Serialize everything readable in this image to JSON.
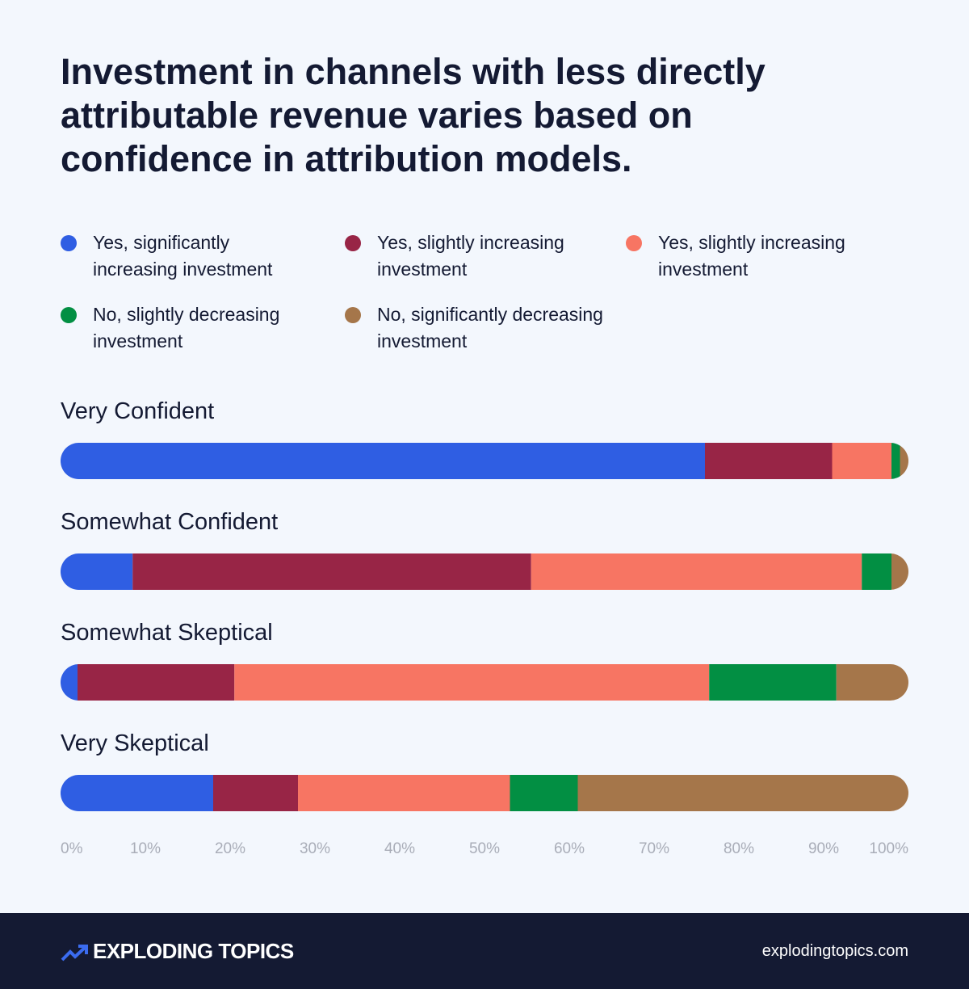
{
  "chart_data": {
    "type": "stacked-bar-horizontal",
    "title": "Investment in channels with less directly attributable revenue varies based on confidence in attribution models.",
    "categories": [
      "Very Confident",
      "Somewhat Confident",
      "Somewhat Skeptical",
      "Very Skeptical"
    ],
    "series": [
      {
        "name": "Yes, significantly increasing investment",
        "color": "#2f5ee3",
        "values": [
          76,
          8.5,
          2,
          18
        ]
      },
      {
        "name": "Yes, slightly increasing investment",
        "color": "#982546",
        "values": [
          15,
          47,
          18.5,
          10
        ]
      },
      {
        "name": "Yes, slightly increasing investment",
        "color": "#f77563",
        "values": [
          7,
          39,
          56,
          25
        ]
      },
      {
        "name": "No, slightly decreasing investment",
        "color": "#028f43",
        "values": [
          1,
          3.5,
          15,
          8
        ]
      },
      {
        "name": "No, significantly decreasing investment",
        "color": "#a5764a",
        "values": [
          1,
          2,
          8.5,
          39
        ]
      }
    ],
    "xlim": [
      0,
      100
    ],
    "xticks": [
      {
        "value": 0,
        "label": "0%"
      },
      {
        "value": 10,
        "label": "10%"
      },
      {
        "value": 20,
        "label": "20%"
      },
      {
        "value": 30,
        "label": "30%"
      },
      {
        "value": 40,
        "label": "40%"
      },
      {
        "value": 50,
        "label": "50%"
      },
      {
        "value": 60,
        "label": "60%"
      },
      {
        "value": 70,
        "label": "70%"
      },
      {
        "value": 80,
        "label": "80%"
      },
      {
        "value": 90,
        "label": "90%"
      },
      {
        "value": 100,
        "label": "100%"
      }
    ]
  },
  "footer": {
    "brand": "EXPLODING TOPICS",
    "url": "explodingtopics.com"
  }
}
